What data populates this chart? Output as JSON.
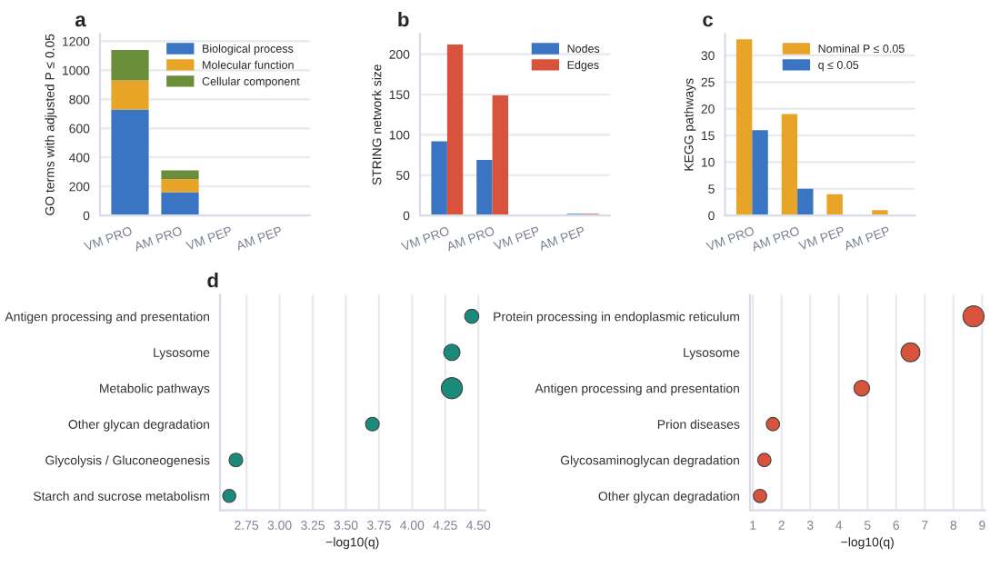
{
  "chart_data": [
    {
      "type": "bar",
      "title": "a",
      "ylabel": "GO terms with adjusted P ≤ 0.05",
      "categories": [
        "VM PRO",
        "AM PRO",
        "VM PEP",
        "AM PEP"
      ],
      "stacked": true,
      "series": [
        {
          "name": "Biological process",
          "color": "#3a75c4",
          "values": [
            730,
            160,
            0,
            0
          ]
        },
        {
          "name": "Molecular function",
          "color": "#e8a427",
          "values": [
            200,
            90,
            0,
            0
          ]
        },
        {
          "name": "Cellular component",
          "color": "#6b8e3a",
          "values": [
            210,
            60,
            0,
            0
          ]
        }
      ],
      "ylim": [
        0,
        1250
      ],
      "yticks": [
        0,
        200,
        400,
        600,
        800,
        1000,
        1200
      ],
      "grid": "y",
      "legend": "top right"
    },
    {
      "type": "bar",
      "title": "b",
      "ylabel": "STRING network size",
      "categories": [
        "VM PRO",
        "AM PRO",
        "VM PEP",
        "AM PEP"
      ],
      "series": [
        {
          "name": "Nodes",
          "color": "#3a75c4",
          "values": [
            92,
            69,
            0,
            2
          ]
        },
        {
          "name": "Edges",
          "color": "#d9533c",
          "values": [
            212,
            149,
            0,
            2
          ]
        }
      ],
      "ylim": [
        0,
        225
      ],
      "yticks": [
        0,
        50,
        100,
        150,
        200
      ],
      "grid": "y",
      "legend": "top right"
    },
    {
      "type": "bar",
      "title": "c",
      "ylabel": "KEGG pathways",
      "categories": [
        "VM PRO",
        "AM PRO",
        "VM PEP",
        "AM PEP"
      ],
      "series": [
        {
          "name": "Nominal P ≤ 0.05",
          "color": "#e8a427",
          "values": [
            33,
            19,
            4,
            1
          ]
        },
        {
          "name": "q ≤ 0.05",
          "color": "#3a75c4",
          "values": [
            16,
            5,
            0,
            0
          ]
        }
      ],
      "ylim": [
        0,
        34
      ],
      "yticks": [
        0,
        5,
        10,
        15,
        20,
        25,
        30
      ],
      "grid": "y",
      "legend": "top right"
    },
    {
      "type": "bubble",
      "title": "d",
      "xlabel": "−log10(q)",
      "categories": [
        "Antigen processing and presentation",
        "Lysosome",
        "Metabolic pathways",
        "Other glycan degradation",
        "Glycolysis / Gluconeogenesis",
        "Starch and sucrose metabolism"
      ],
      "series": [
        {
          "color": "#1a8a7a",
          "values": [
            4.45,
            4.3,
            4.3,
            3.7,
            2.67,
            2.62
          ],
          "sizes": [
            0.45,
            0.6,
            1,
            0.42,
            0.42,
            0.38
          ]
        }
      ],
      "orientation": "horizontal",
      "xlim": [
        2.55,
        4.55
      ],
      "xticks": [
        2.75,
        {
          "value": 3,
          "label": "3.00"
        },
        3.25,
        {
          "value": 3.5,
          "label": "3.50"
        },
        3.75,
        {
          "value": 4,
          "label": "4.00"
        },
        4.25,
        {
          "value": 4.5,
          "label": "4.50"
        }
      ],
      "grid": "x"
    },
    {
      "type": "bubble",
      "xlabel": "−log10(q)",
      "categories": [
        "Protein processing in endoplasmic reticulum",
        "Lysosome",
        "Antigen processing and presentation",
        "Prion diseases",
        "Glycosaminoglycan degradation",
        "Other glycan degradation"
      ],
      "series": [
        {
          "color": "#d9533c",
          "values": [
            8.7,
            6.5,
            4.8,
            1.7,
            1.4,
            1.25
          ],
          "sizes": [
            1,
            0.8,
            0.55,
            0.4,
            0.4,
            0.4
          ]
        }
      ],
      "orientation": "horizontal",
      "xlim": [
        0.9,
        9.1
      ],
      "xticks": [
        1,
        2,
        3,
        4,
        5,
        6,
        7,
        8,
        9
      ],
      "grid": "x"
    }
  ]
}
